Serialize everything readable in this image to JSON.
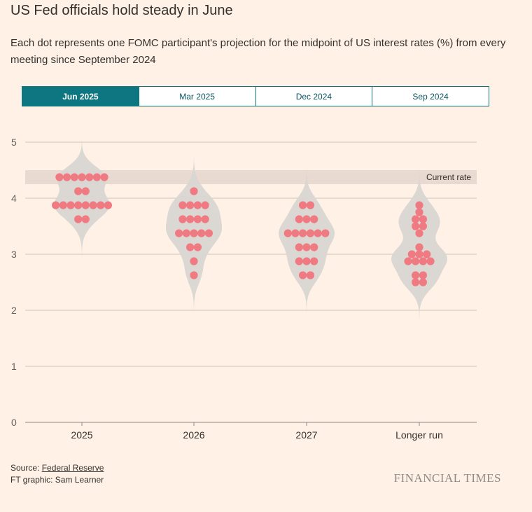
{
  "header": {
    "title": "US Fed officials hold steady in June",
    "subtitle": "Each dot represents one FOMC participant's projection for the midpoint of US interest rates (%) from every meeting since September 2024"
  },
  "tabs": [
    {
      "label": "Jun 2025",
      "active": true
    },
    {
      "label": "Mar 2025",
      "active": false
    },
    {
      "label": "Dec 2024",
      "active": false
    },
    {
      "label": "Sep 2024",
      "active": false
    }
  ],
  "chart_data": {
    "type": "scatter",
    "subtype": "dot plot with violin density",
    "categories": [
      "2025",
      "2026",
      "2027",
      "Longer run"
    ],
    "ylim": [
      0,
      5
    ],
    "yticks": [
      0,
      1,
      2,
      3,
      4,
      5
    ],
    "grid": true,
    "current_rate": {
      "label": "Current rate",
      "range": [
        4.25,
        4.5
      ]
    },
    "dots": [
      [
        4.375,
        4.375,
        4.375,
        4.375,
        4.375,
        4.375,
        4.375,
        4.125,
        4.125,
        3.875,
        3.875,
        3.875,
        3.875,
        3.875,
        3.875,
        3.875,
        3.875,
        3.625,
        3.625
      ],
      [
        4.125,
        3.875,
        3.875,
        3.875,
        3.875,
        3.625,
        3.625,
        3.625,
        3.625,
        3.375,
        3.375,
        3.375,
        3.375,
        3.375,
        3.125,
        3.125,
        2.875,
        2.625
      ],
      [
        3.875,
        3.875,
        3.625,
        3.625,
        3.625,
        3.375,
        3.375,
        3.375,
        3.375,
        3.375,
        3.375,
        3.125,
        3.125,
        3.125,
        2.875,
        2.875,
        2.875,
        2.625,
        2.625
      ],
      [
        3.875,
        3.75,
        3.625,
        3.625,
        3.5,
        3.5,
        3.375,
        3.125,
        3.0,
        3.0,
        3.0,
        2.875,
        2.875,
        2.875,
        2.875,
        2.625,
        2.625,
        2.5,
        2.5
      ]
    ],
    "colors": {
      "dot": "#f07a82",
      "violin": "#d9d6d3",
      "band": "#e8dad0",
      "grid": "#ccc1b7"
    }
  },
  "footer": {
    "source_prefix": "Source: ",
    "source_link": "Federal Reserve",
    "credit": "FT graphic: Sam Learner",
    "brand": "FINANCIAL TIMES"
  }
}
